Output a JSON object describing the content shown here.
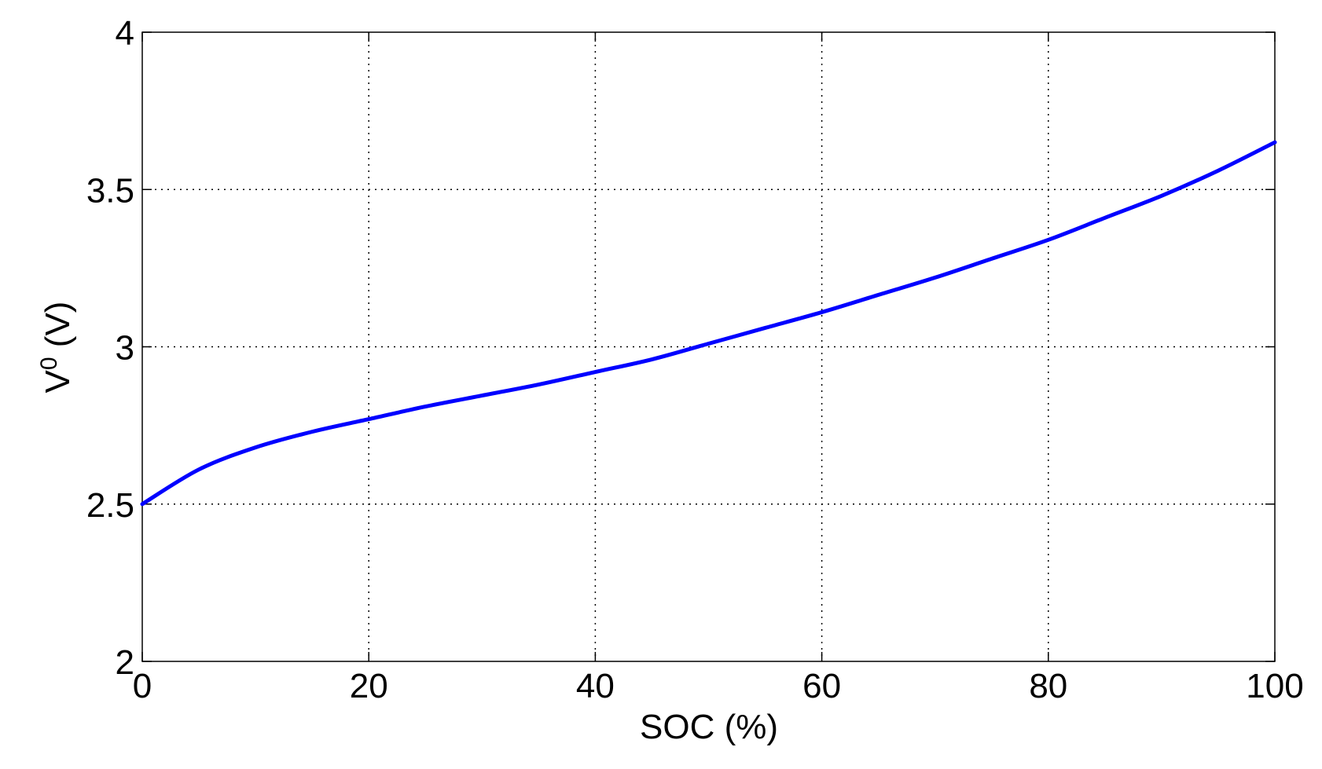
{
  "chart_data": {
    "type": "line",
    "title": "",
    "xlabel": "SOC (%)",
    "ylabel_main": "V",
    "ylabel_superscript": "0",
    "ylabel_unit": " (V)",
    "xlim": [
      0,
      100
    ],
    "ylim": [
      2,
      4
    ],
    "x_ticks": [
      0,
      20,
      40,
      60,
      80,
      100
    ],
    "y_ticks": [
      2,
      2.5,
      3,
      3.5,
      4
    ],
    "x_tick_labels": [
      "0",
      "20",
      "40",
      "60",
      "80",
      "100"
    ],
    "y_tick_labels": [
      "2",
      "2.5",
      "3",
      "3.5",
      "4"
    ],
    "grid": true,
    "line_color": "#0000ff",
    "series": [
      {
        "x": [
          0,
          5,
          10,
          15,
          20,
          25,
          30,
          35,
          40,
          45,
          50,
          55,
          60,
          65,
          70,
          75,
          80,
          85,
          90,
          95,
          100
        ],
        "y": [
          2.5,
          2.61,
          2.68,
          2.73,
          2.77,
          2.81,
          2.845,
          2.88,
          2.92,
          2.96,
          3.01,
          3.06,
          3.11,
          3.165,
          3.22,
          3.28,
          3.34,
          3.41,
          3.48,
          3.56,
          3.65
        ]
      }
    ]
  }
}
